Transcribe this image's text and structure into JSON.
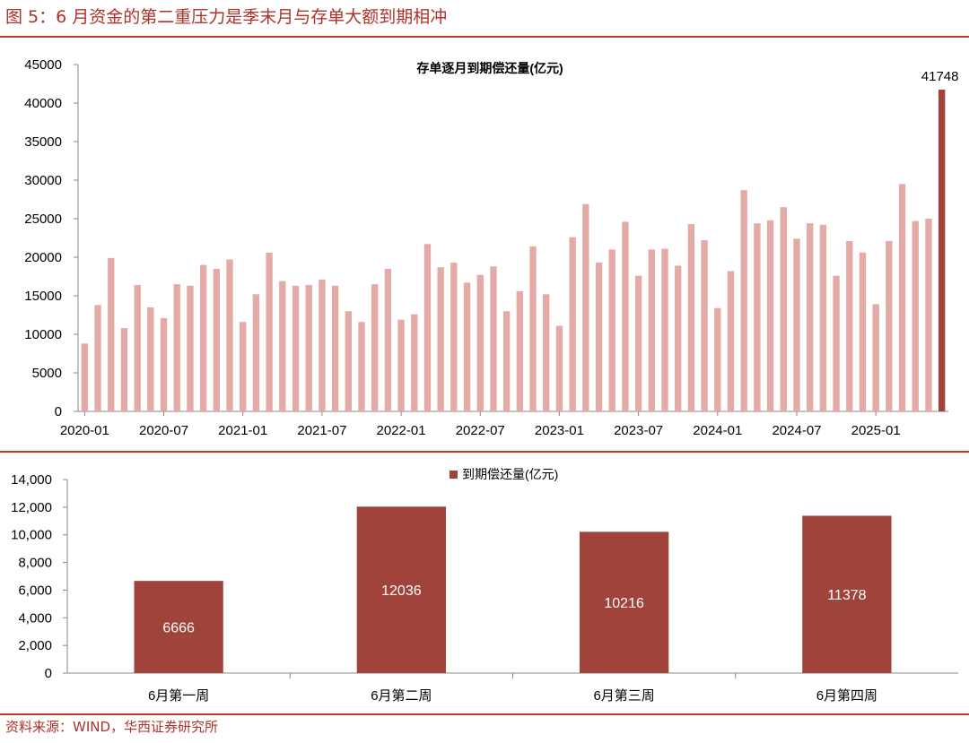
{
  "figure": {
    "title": "图 5：6 月资金的第二重压力是季末月与存单大额到期相冲",
    "source": "资料来源：WIND，华西证券研究所"
  },
  "colors": {
    "accent": "#c0392b",
    "light_bar": "#e3aaa6",
    "dark_bar": "#a0433a"
  },
  "chart_data": [
    {
      "type": "bar",
      "title": "存单逐月到期偿还量(亿元)",
      "x": [
        "2020-01",
        "2020-02",
        "2020-03",
        "2020-04",
        "2020-05",
        "2020-06",
        "2020-07",
        "2020-08",
        "2020-09",
        "2020-10",
        "2020-11",
        "2020-12",
        "2021-01",
        "2021-02",
        "2021-03",
        "2021-04",
        "2021-05",
        "2021-06",
        "2021-07",
        "2021-08",
        "2021-09",
        "2021-10",
        "2021-11",
        "2021-12",
        "2022-01",
        "2022-02",
        "2022-03",
        "2022-04",
        "2022-05",
        "2022-06",
        "2022-07",
        "2022-08",
        "2022-09",
        "2022-10",
        "2022-11",
        "2022-12",
        "2023-01",
        "2023-02",
        "2023-03",
        "2023-04",
        "2023-05",
        "2023-06",
        "2023-07",
        "2023-08",
        "2023-09",
        "2023-10",
        "2023-11",
        "2023-12",
        "2024-01",
        "2024-02",
        "2024-03",
        "2024-04",
        "2024-05",
        "2024-06",
        "2024-07",
        "2024-08",
        "2024-09",
        "2024-10",
        "2024-11",
        "2024-12",
        "2025-01",
        "2025-02",
        "2025-03",
        "2025-04",
        "2025-05",
        "2025-06"
      ],
      "values": [
        8800,
        13800,
        19900,
        10800,
        16400,
        13500,
        12100,
        16500,
        16300,
        19000,
        18500,
        19700,
        11600,
        15200,
        20600,
        16900,
        16300,
        16400,
        17100,
        16300,
        13000,
        11600,
        16500,
        18500,
        11900,
        12600,
        21700,
        18700,
        19300,
        16700,
        17700,
        18800,
        13000,
        15600,
        21400,
        15200,
        11100,
        22600,
        26900,
        19300,
        21000,
        24600,
        17600,
        21000,
        21100,
        18900,
        24300,
        22200,
        13400,
        18200,
        28700,
        24400,
        24800,
        26500,
        22400,
        24400,
        24200,
        17600,
        22100,
        20600,
        13900,
        22100,
        29500,
        24700,
        25000,
        41748
      ],
      "xticks": [
        "2020-01",
        "2020-07",
        "2021-01",
        "2021-07",
        "2022-01",
        "2022-07",
        "2023-01",
        "2023-07",
        "2024-01",
        "2024-07",
        "2025-01"
      ],
      "yticks": [
        "0",
        "5000",
        "10000",
        "15000",
        "20000",
        "25000",
        "30000",
        "35000",
        "40000",
        "45000"
      ],
      "ylim": [
        0,
        45000
      ],
      "highlight_label": "41748",
      "grid": false
    },
    {
      "type": "bar",
      "legend": "到期偿还量(亿元)",
      "categories": [
        "6月第一周",
        "6月第二周",
        "6月第三周",
        "6月第四周"
      ],
      "values": [
        6666,
        12036,
        10216,
        11378
      ],
      "value_labels": [
        "6666",
        "12036",
        "10216",
        "11378"
      ],
      "yticks": [
        "0",
        "2,000",
        "4,000",
        "6,000",
        "8,000",
        "10,000",
        "12,000",
        "14,000"
      ],
      "ylim": [
        0,
        14000
      ],
      "legend_position": "top-center",
      "grid": false
    }
  ]
}
